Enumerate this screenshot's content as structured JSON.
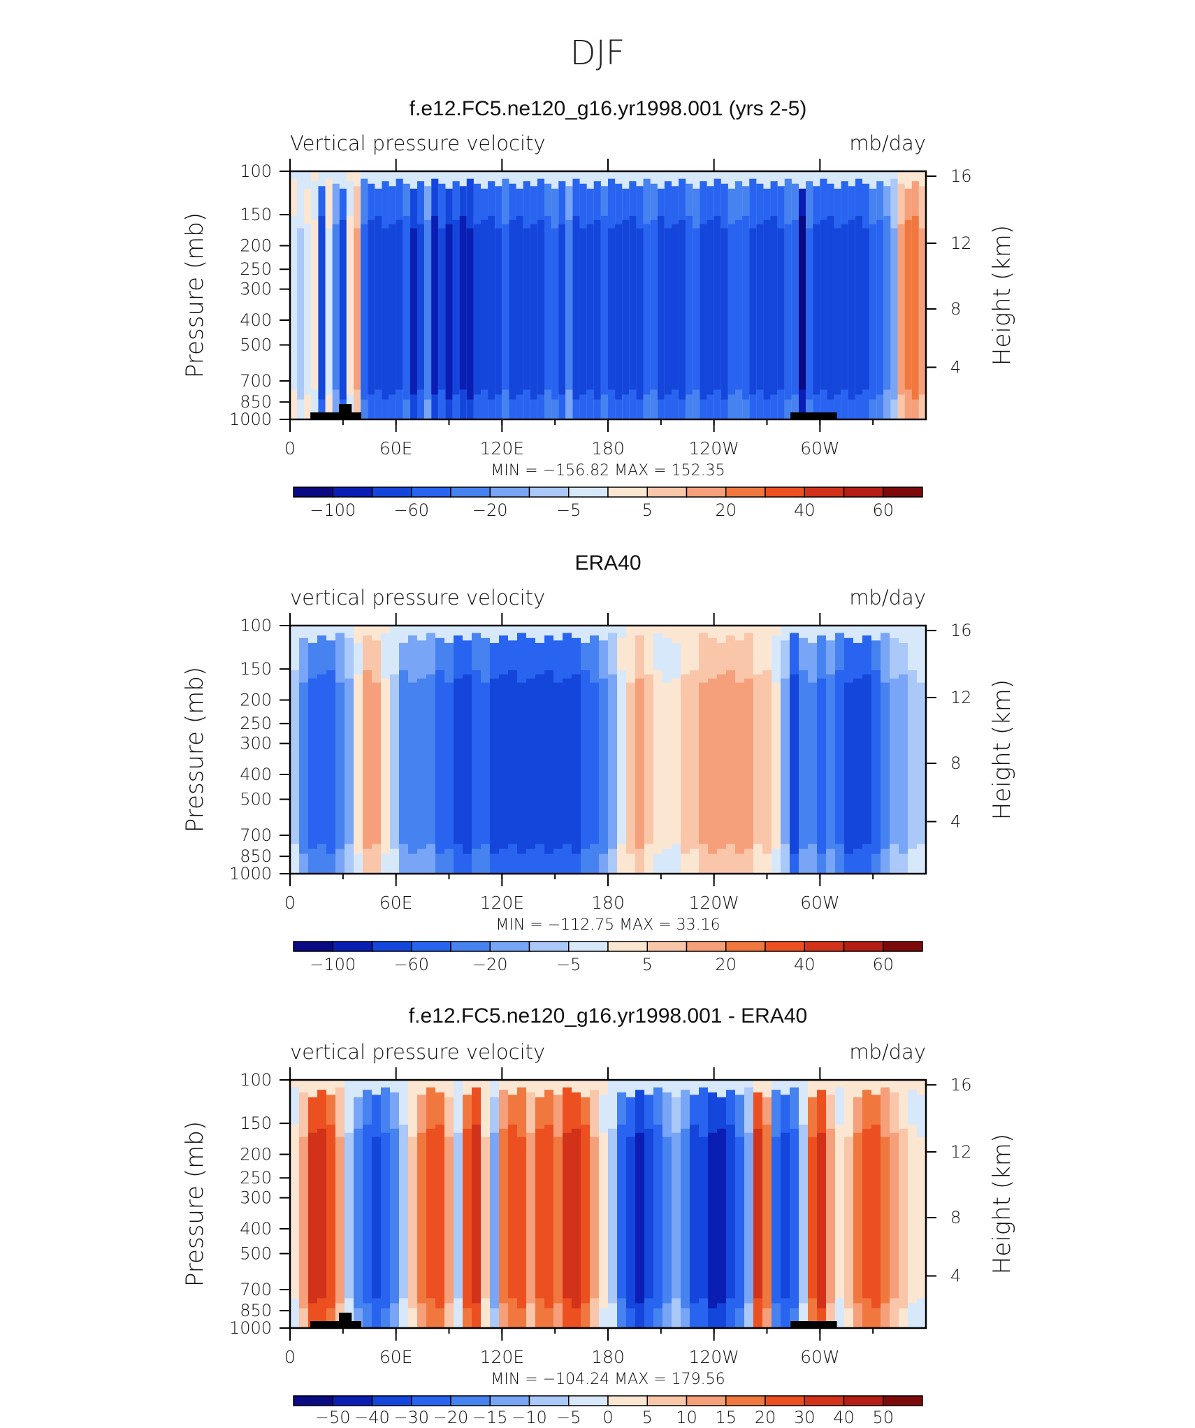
{
  "page": {
    "title": "DJF"
  },
  "colors": {
    "div_colors": [
      "#0a0a82",
      "#0a1eb4",
      "#1446dc",
      "#2864f0",
      "#4682f0",
      "#78a5f5",
      "#aac8f8",
      "#d7e8fb",
      "#fbe6d2",
      "#f9c6aa",
      "#f5a07a",
      "#f0783f",
      "#ec5020",
      "#d2321a",
      "#b41e14",
      "#7d0a0a"
    ],
    "land_mask": "#000000",
    "frame": "#000000"
  },
  "chart_data": [
    {
      "type": "heatmap",
      "title": "f.e12.FC5.ne120_g16.yr1998.001 (yrs 2-5)",
      "left_label": "Vertical pressure velocity",
      "right_label": "mb/day",
      "ylabel": "Pressure (mb)",
      "y2label": "Height (km)",
      "x_ticks": [
        "0",
        "60E",
        "120E",
        "180",
        "120W",
        "60W"
      ],
      "y_ticks": [
        "100",
        "150",
        "200",
        "250",
        "300",
        "400",
        "500",
        "700",
        "850",
        "1000"
      ],
      "y2_ticks": [
        "16",
        "12",
        "8",
        "4"
      ],
      "min_max": "MIN = −156.82   MAX = 152.35",
      "colorbar_labels": [
        "−100",
        "−60",
        "−20",
        "−5",
        "5",
        "20",
        "40",
        "60"
      ],
      "columns": [
        -1,
        -2,
        -1,
        1,
        -6,
        -1,
        -4,
        -6,
        1,
        3,
        -5,
        -6,
        -6,
        -6,
        -6,
        -6,
        -5,
        -7,
        -6,
        -4,
        -7,
        -6,
        -7,
        -6,
        -7,
        -7,
        -6,
        -6,
        -6,
        -6,
        -5,
        -6,
        -6,
        -6,
        -6,
        -6,
        -5,
        -5,
        -6,
        -4,
        -6,
        -6,
        -6,
        -6,
        -5,
        -6,
        -6,
        -6,
        -6,
        -6,
        -5,
        -5,
        -6,
        -6,
        -6,
        -6,
        -5,
        -5,
        -6,
        -6,
        -6,
        -6,
        -5,
        -5,
        -5,
        -6,
        -6,
        -6,
        -6,
        -6,
        -5,
        -5,
        -8,
        -5,
        -6,
        -6,
        -6,
        -6,
        -6,
        -6,
        -6,
        -6,
        -5,
        -5,
        -4,
        -3,
        3,
        4,
        4,
        3
      ]
    },
    {
      "type": "heatmap",
      "title": "ERA40",
      "left_label": "vertical pressure velocity",
      "right_label": "mb/day",
      "ylabel": "Pressure (mb)",
      "y2label": "Height (km)",
      "x_ticks": [
        "0",
        "60E",
        "120E",
        "180",
        "120W",
        "60W"
      ],
      "y_ticks": [
        "100",
        "150",
        "200",
        "250",
        "300",
        "400",
        "500",
        "700",
        "850",
        "1000"
      ],
      "y2_ticks": [
        "16",
        "12",
        "8",
        "4"
      ],
      "min_max": "MIN = −112.75   MAX =   33.16",
      "colorbar_labels": [
        "−100",
        "−60",
        "−20",
        "−5",
        "5",
        "20",
        "40",
        "60"
      ],
      "columns": [
        -2,
        -4,
        -5,
        -5,
        -5,
        -4,
        -3,
        1,
        3,
        3,
        1,
        -2,
        -4,
        -4,
        -4,
        -4,
        -5,
        -5,
        -6,
        -6,
        -5,
        -5,
        -6,
        -6,
        -6,
        -6,
        -6,
        -6,
        -6,
        -6,
        -6,
        -6,
        -5,
        -5,
        -4,
        -3,
        -1,
        2,
        3,
        2,
        1,
        1,
        1,
        2,
        2,
        3,
        3,
        3,
        3,
        3,
        3,
        2,
        2,
        1,
        -3,
        -6,
        -4,
        -4,
        -5,
        -4,
        -5,
        -6,
        -6,
        -6,
        -5,
        -4,
        -3,
        -3,
        -2,
        -2
      ]
    },
    {
      "type": "heatmap",
      "title": "f.e12.FC5.ne120_g16.yr1998.001 - ERA40",
      "left_label": "vertical pressure velocity",
      "right_label": "mb/day",
      "ylabel": "Pressure (mb)",
      "y2label": "Height (km)",
      "x_ticks": [
        "0",
        "60E",
        "120E",
        "180",
        "120W",
        "60W"
      ],
      "y_ticks": [
        "100",
        "150",
        "200",
        "250",
        "300",
        "400",
        "500",
        "700",
        "850",
        "1000"
      ],
      "y2_ticks": [
        "16",
        "12",
        "8",
        "4"
      ],
      "min_max": "MIN = −104.24   MAX = 179.56",
      "colorbar_labels": [
        "−50",
        "−40",
        "−30",
        "−20",
        "−15",
        "−10",
        "−5",
        "0",
        "5",
        "10",
        "15",
        "20",
        "30",
        "40",
        "50"
      ],
      "columns": [
        1,
        3,
        6,
        6,
        5,
        3,
        -2,
        -4,
        -5,
        -6,
        -5,
        -4,
        -2,
        2,
        4,
        5,
        5,
        3,
        -2,
        5,
        6,
        2,
        -3,
        4,
        5,
        5,
        3,
        5,
        5,
        4,
        6,
        6,
        5,
        3,
        1,
        -2,
        -5,
        -6,
        -7,
        -6,
        -5,
        -4,
        -3,
        -4,
        -6,
        -6,
        -7,
        -7,
        -6,
        -5,
        -3,
        6,
        4,
        -5,
        -6,
        -5,
        -2,
        5,
        6,
        3,
        1,
        2,
        4,
        5,
        5,
        4,
        3,
        2,
        1,
        1
      ]
    }
  ]
}
